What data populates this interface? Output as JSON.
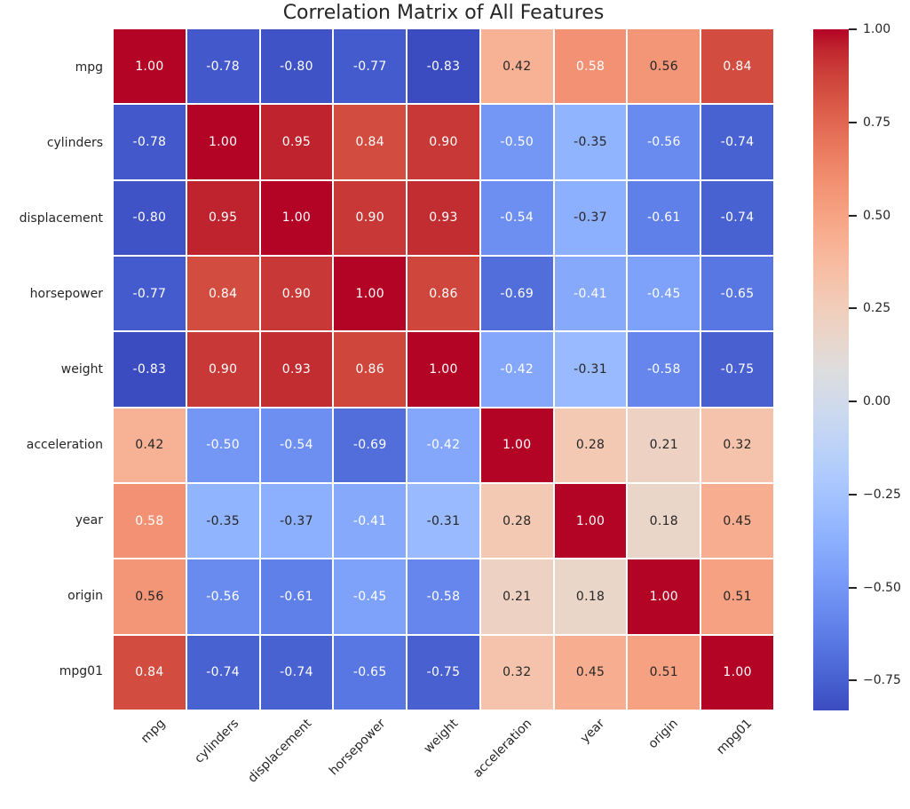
{
  "title": "Correlation Matrix of All Features",
  "chart_data": {
    "type": "heatmap",
    "title": "Correlation Matrix of All Features",
    "x_labels": [
      "mpg",
      "cylinders",
      "displacement",
      "horsepower",
      "weight",
      "acceleration",
      "year",
      "origin",
      "mpg01"
    ],
    "y_labels": [
      "mpg",
      "cylinders",
      "displacement",
      "horsepower",
      "weight",
      "acceleration",
      "year",
      "origin",
      "mpg01"
    ],
    "matrix": [
      [
        1.0,
        -0.78,
        -0.8,
        -0.77,
        -0.83,
        0.42,
        0.58,
        0.56,
        0.84
      ],
      [
        -0.78,
        1.0,
        0.95,
        0.84,
        0.9,
        -0.5,
        -0.35,
        -0.56,
        -0.74
      ],
      [
        -0.8,
        0.95,
        1.0,
        0.9,
        0.93,
        -0.54,
        -0.37,
        -0.61,
        -0.74
      ],
      [
        -0.77,
        0.84,
        0.9,
        1.0,
        0.86,
        -0.69,
        -0.41,
        -0.45,
        -0.65
      ],
      [
        -0.83,
        0.9,
        0.93,
        0.86,
        1.0,
        -0.42,
        -0.31,
        -0.58,
        -0.75
      ],
      [
        0.42,
        -0.5,
        -0.54,
        -0.69,
        -0.42,
        1.0,
        0.28,
        0.21,
        0.32
      ],
      [
        0.58,
        -0.35,
        -0.37,
        -0.41,
        -0.31,
        0.28,
        1.0,
        0.18,
        0.45
      ],
      [
        0.56,
        -0.56,
        -0.61,
        -0.45,
        -0.58,
        0.21,
        0.18,
        1.0,
        0.51
      ],
      [
        0.84,
        -0.74,
        -0.74,
        -0.65,
        -0.75,
        0.32,
        0.45,
        0.51,
        1.0
      ]
    ],
    "annotation_decimals": 2,
    "vmin": -0.83,
    "vmax": 1.0,
    "grid_line_color": "#ffffff",
    "background_color": "#ffffff",
    "text_color": "#262626",
    "annotation_colors": {
      "light": "#ffffff",
      "dark": "#262626",
      "luminance_threshold": 0.408
    },
    "colormap": {
      "name": "coolwarm",
      "stops": [
        [
          59,
          76,
          192
        ],
        [
          68,
          90,
          204
        ],
        [
          77,
          104,
          215
        ],
        [
          87,
          117,
          225
        ],
        [
          98,
          130,
          234
        ],
        [
          108,
          142,
          241
        ],
        [
          119,
          154,
          247
        ],
        [
          130,
          165,
          251
        ],
        [
          141,
          176,
          254
        ],
        [
          152,
          185,
          255
        ],
        [
          163,
          194,
          255
        ],
        [
          174,
          201,
          253
        ],
        [
          184,
          208,
          249
        ],
        [
          194,
          213,
          244
        ],
        [
          204,
          217,
          238
        ],
        [
          213,
          219,
          230
        ],
        [
          221,
          221,
          221
        ],
        [
          229,
          216,
          209
        ],
        [
          236,
          211,
          197
        ],
        [
          241,
          204,
          185
        ],
        [
          245,
          196,
          173
        ],
        [
          247,
          187,
          160
        ],
        [
          247,
          177,
          148
        ],
        [
          247,
          166,
          135
        ],
        [
          244,
          154,
          123
        ],
        [
          241,
          141,
          111
        ],
        [
          236,
          127,
          99
        ],
        [
          229,
          112,
          88
        ],
        [
          222,
          96,
          77
        ],
        [
          213,
          80,
          66
        ],
        [
          203,
          62,
          56
        ],
        [
          192,
          40,
          47
        ],
        [
          180,
          4,
          38
        ]
      ]
    },
    "colorbar": {
      "tick_labels": [
        "1.00",
        "0.75",
        "0.50",
        "0.25",
        "0.00",
        "−0.25",
        "−0.50",
        "−0.75"
      ],
      "tick_values": [
        1.0,
        0.75,
        0.5,
        0.25,
        0.0,
        -0.25,
        -0.5,
        -0.75
      ],
      "position": "right"
    },
    "legend": null,
    "grid": false
  }
}
